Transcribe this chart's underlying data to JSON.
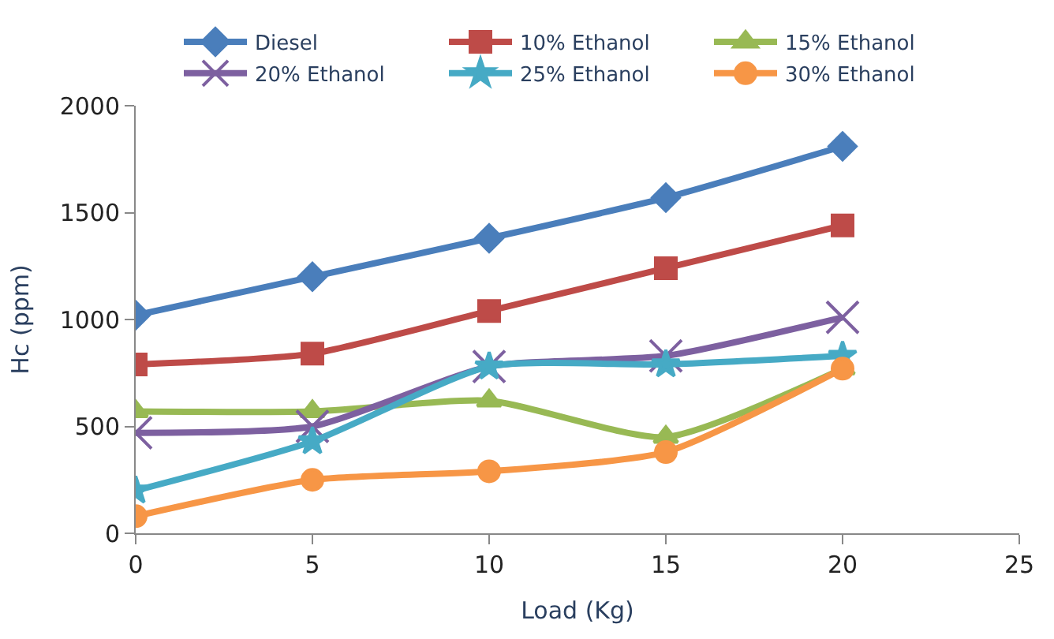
{
  "chart_data": {
    "type": "line",
    "xlabel": "Load (Kg)",
    "ylabel": "Hc (ppm)",
    "x": [
      0,
      5,
      10,
      15,
      20
    ],
    "xlim": [
      0,
      25
    ],
    "xticks": [
      0,
      5,
      10,
      15,
      20,
      25
    ],
    "ylim": [
      0,
      2000
    ],
    "yticks": [
      0,
      500,
      1000,
      1500,
      2000
    ],
    "legend": "top",
    "line_style": "solid",
    "series": [
      {
        "name": "Diesel",
        "color": "#4a7ebb",
        "marker": "diamond",
        "values": [
          1020,
          1200,
          1380,
          1570,
          1810
        ]
      },
      {
        "name": "10% Ethanol",
        "color": "#be4b48",
        "marker": "square",
        "values": [
          790,
          840,
          1040,
          1240,
          1440
        ]
      },
      {
        "name": "15% Ethanol",
        "color": "#98b954",
        "marker": "triangle",
        "values": [
          570,
          570,
          620,
          450,
          770
        ]
      },
      {
        "name": "20% Ethanol",
        "color": "#7d60a0",
        "marker": "cross",
        "values": [
          470,
          500,
          780,
          830,
          1010
        ]
      },
      {
        "name": "25% Ethanol",
        "color": "#46aac5",
        "marker": "star",
        "values": [
          200,
          430,
          780,
          790,
          830
        ]
      },
      {
        "name": "30% Ethanol",
        "color": "#f79646",
        "marker": "circle",
        "values": [
          80,
          250,
          290,
          380,
          770
        ]
      }
    ]
  }
}
